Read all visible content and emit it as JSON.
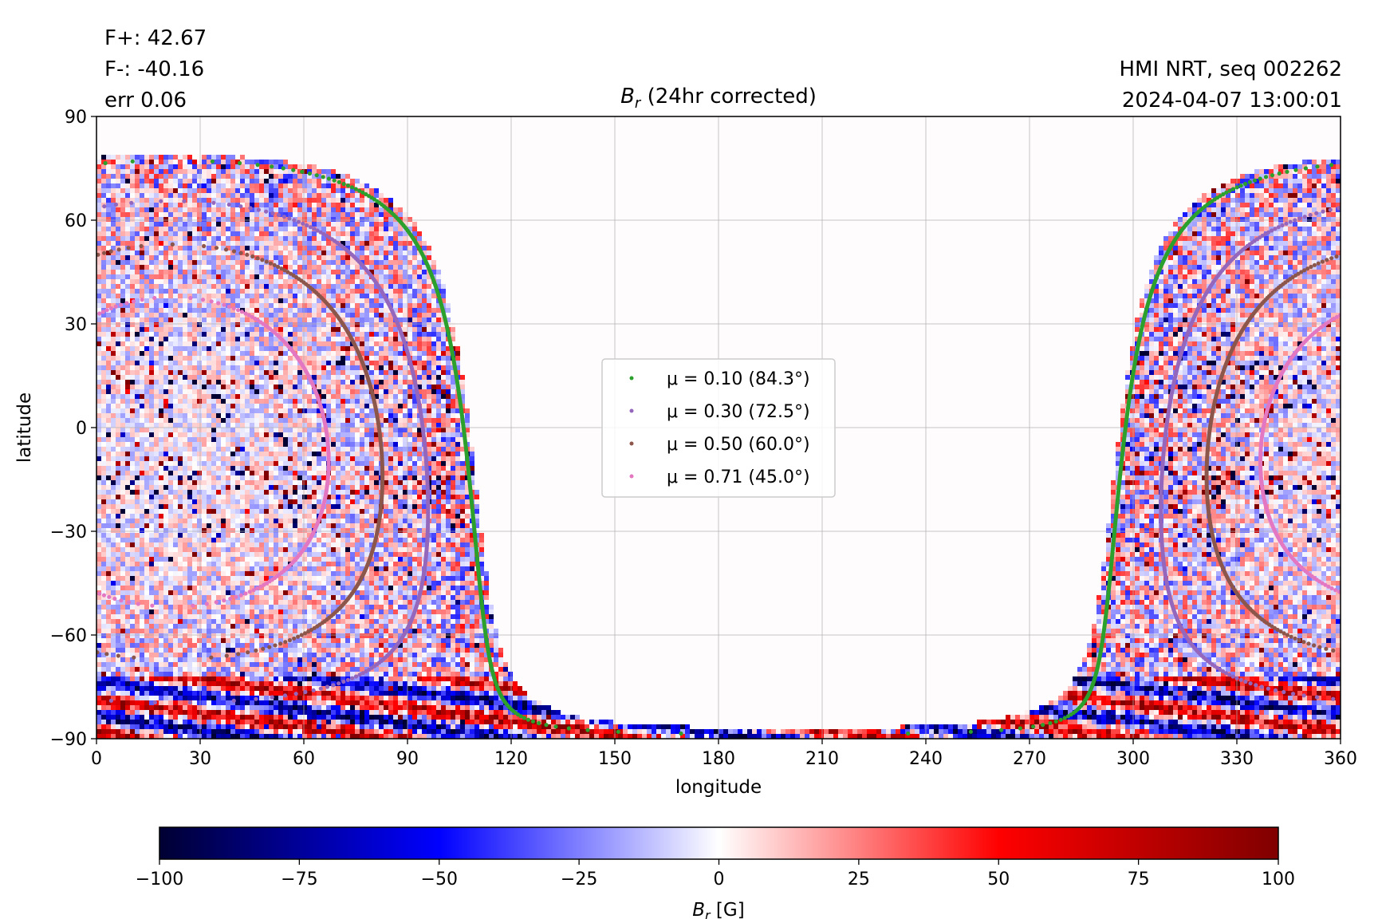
{
  "header": {
    "flux_pos": "F+: 42.67",
    "flux_neg": "F-: -40.16",
    "err": "err 0.06",
    "source": "HMI NRT, seq 002262",
    "timestamp": "2024-04-07 13:00:01"
  },
  "chart_data": {
    "type": "heatmap",
    "title_symbol": "B",
    "title_subscript": "r",
    "title_rest": " (24hr corrected)",
    "xlabel": "longitude",
    "ylabel": "latitude",
    "xlim": [
      0,
      360
    ],
    "ylim": [
      -90,
      90
    ],
    "xticks": [
      "0",
      "30",
      "60",
      "90",
      "120",
      "150",
      "180",
      "210",
      "240",
      "270",
      "300",
      "330",
      "360"
    ],
    "yticks": [
      "90",
      "60",
      "30",
      "0",
      "−30",
      "−60",
      "−90"
    ],
    "grid": true,
    "colormap": "seismic",
    "colormap_stops": [
      "#000033",
      "#0000ff",
      "#ffffff",
      "#ff0000",
      "#800000"
    ],
    "clim": [
      -100,
      100
    ],
    "colorbar_ticks": [
      "−100",
      "−75",
      "−50",
      "−25",
      "0",
      "25",
      "50",
      "75",
      "100"
    ],
    "colorbar_label_symbol": "B",
    "colorbar_label_subscript": "r",
    "colorbar_label_rest": " [G]",
    "legend_position": "center",
    "disk_center_longitude": 22,
    "disk_center_latitude": -7,
    "series": [
      {
        "name": "μ = 0.10 (84.3°)",
        "mu": 0.1,
        "angle_deg": 84.3,
        "color": "#2ca02c"
      },
      {
        "name": "μ = 0.30 (72.5°)",
        "mu": 0.3,
        "angle_deg": 72.5,
        "color": "#9467bd"
      },
      {
        "name": "μ = 0.50 (60.0°)",
        "mu": 0.5,
        "angle_deg": 60.0,
        "color": "#8c564b"
      },
      {
        "name": "μ = 0.71 (45.0°)",
        "mu": 0.71,
        "angle_deg": 45.0,
        "color": "#e377c2"
      }
    ]
  }
}
